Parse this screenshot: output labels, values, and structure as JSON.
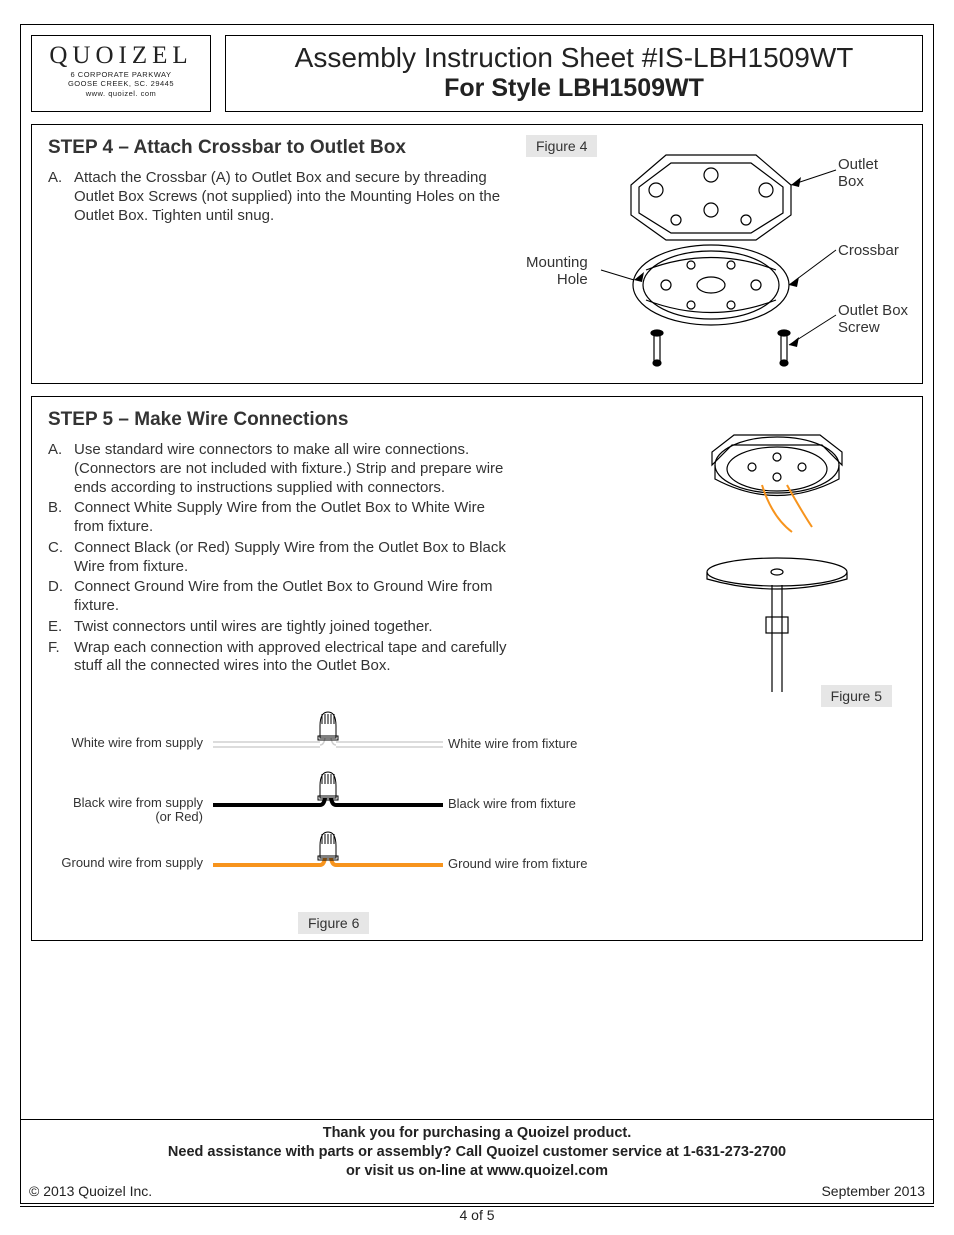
{
  "logo": {
    "name": "QUOIZEL",
    "addr1": "6 CORPORATE PARKWAY",
    "addr2": "GOOSE CREEK, SC. 29445",
    "addr3": "www. quoizel. com"
  },
  "title": {
    "line1": "Assembly Instruction Sheet #IS-LBH1509WT",
    "line2": "For Style LBH1509WT"
  },
  "step4": {
    "heading": "STEP 4 – Attach Crossbar to Outlet Box",
    "items": [
      {
        "letter": "A.",
        "text": "Attach the Crossbar (A) to Outlet Box and secure by threading Outlet Box Screws (not supplied) into the Mounting Holes on the Outlet Box. Tighten until snug."
      }
    ],
    "figure_label": "Figure 4",
    "callouts": {
      "outlet_box": "Outlet\nBox",
      "crossbar": "Crossbar",
      "outlet_box_screw": "Outlet Box\nScrew",
      "mounting_hole": "Mounting\nHole"
    }
  },
  "step5": {
    "heading": "STEP 5 – Make Wire Connections",
    "items": [
      {
        "letter": "A.",
        "text": "Use standard wire connectors to make all wire connections. (Connectors are not included with fixture.) Strip and prepare wire ends according to instructions supplied with connectors."
      },
      {
        "letter": "B.",
        "text": "Connect White Supply Wire from the Outlet Box to White Wire from fixture."
      },
      {
        "letter": "C.",
        "text": "Connect Black (or Red) Supply Wire from the Outlet Box to Black Wire from fixture."
      },
      {
        "letter": "D.",
        "text": "Connect Ground Wire from the Outlet Box to Ground Wire from fixture."
      },
      {
        "letter": "E.",
        "text": "Twist connectors until wires are tightly joined together."
      },
      {
        "letter": "F.",
        "text": "Wrap each connection with approved electrical tape and carefully stuff all the connected wires into the Outlet Box."
      }
    ],
    "figure5_label": "Figure 5",
    "figure6_label": "Figure 6",
    "wires": [
      {
        "left": "White wire from supply",
        "right": "White wire from fixture",
        "color_left": "#d0d0d0",
        "color_right": "#d0d0d0",
        "double": true
      },
      {
        "left": "Black wire from supply\n(or Red)",
        "right": "Black wire from fixture",
        "color_left": "#000000",
        "color_right": "#000000",
        "double": false
      },
      {
        "left": "Ground wire from supply",
        "right": "Ground wire from fixture",
        "color_left": "#f7941d",
        "color_right": "#f7941d",
        "double": false
      }
    ]
  },
  "footer": {
    "line1": "Thank you for purchasing a Quoizel product.",
    "line2": "Need assistance with parts or assembly? Call Quoizel customer service at 1-631-273-2700",
    "line3": "or visit us on-line at www.quoizel.com",
    "copyright": "© 2013  Quoizel Inc.",
    "date": "September 2013",
    "page": "4 of 5"
  },
  "colors": {
    "orange": "#f7941d",
    "gray_label_bg": "#e6e6e6"
  }
}
